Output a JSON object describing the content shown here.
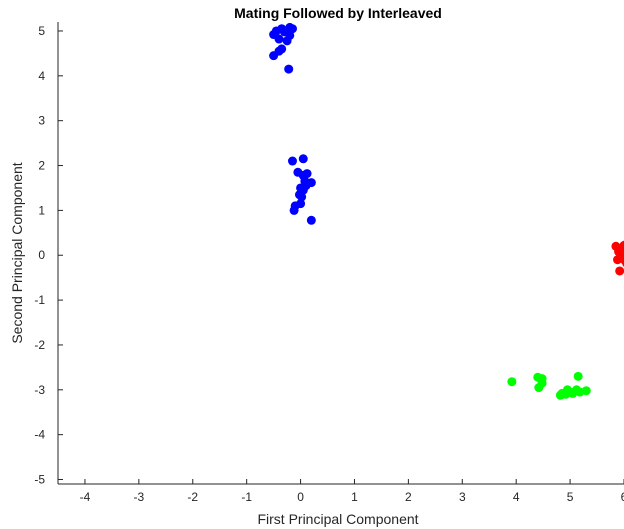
{
  "chart_data": {
    "type": "scatter",
    "title": "Mating Followed by Interleaved",
    "xlabel": "First Principal Component",
    "ylabel": "Second Principal Component",
    "xlim": [
      -4.5,
      6
    ],
    "ylim": [
      -5.1,
      5.2
    ],
    "xticks": [
      -4,
      -3,
      -2,
      -1,
      0,
      1,
      2,
      3,
      4,
      5,
      6
    ],
    "yticks": [
      -5,
      -4,
      -3,
      -2,
      -1,
      0,
      1,
      2,
      3,
      4,
      5
    ],
    "grid": false,
    "series": [
      {
        "color": "#0000ff",
        "points": [
          [
            -0.45,
            5.0
          ],
          [
            -0.35,
            5.05
          ],
          [
            -0.2,
            5.08
          ],
          [
            -0.15,
            5.05
          ],
          [
            -0.3,
            4.98
          ],
          [
            -0.5,
            4.92
          ],
          [
            -0.2,
            4.9
          ],
          [
            -0.4,
            4.82
          ],
          [
            -0.25,
            4.78
          ],
          [
            -0.35,
            4.6
          ],
          [
            -0.4,
            4.55
          ],
          [
            -0.5,
            4.45
          ],
          [
            -0.22,
            4.15
          ]
        ]
      },
      {
        "color": "#0000ff",
        "points": [
          [
            -0.15,
            2.1
          ],
          [
            0.05,
            2.15
          ],
          [
            -0.05,
            1.85
          ],
          [
            0.05,
            1.78
          ],
          [
            0.12,
            1.82
          ],
          [
            0.08,
            1.65
          ],
          [
            0.2,
            1.62
          ],
          [
            0.1,
            1.55
          ],
          [
            0.0,
            1.5
          ],
          [
            0.05,
            1.45
          ],
          [
            -0.02,
            1.35
          ],
          [
            0.02,
            1.3
          ],
          [
            0.0,
            1.15
          ],
          [
            -0.1,
            1.1
          ],
          [
            -0.12,
            1.0
          ],
          [
            0.2,
            0.78
          ]
        ]
      },
      {
        "color": "#ff0000",
        "points": [
          [
            5.85,
            0.2
          ],
          [
            5.95,
            0.15
          ],
          [
            6.0,
            0.22
          ],
          [
            6.05,
            0.25
          ],
          [
            5.9,
            0.08
          ],
          [
            6.0,
            0.05
          ],
          [
            5.95,
            -0.05
          ],
          [
            5.88,
            -0.1
          ],
          [
            6.02,
            -0.12
          ],
          [
            6.05,
            -0.18
          ],
          [
            5.92,
            -0.35
          ]
        ]
      },
      {
        "color": "#00ff00",
        "points": [
          [
            3.92,
            -2.82
          ],
          [
            4.4,
            -2.72
          ],
          [
            4.48,
            -2.75
          ],
          [
            4.48,
            -2.85
          ],
          [
            4.42,
            -2.95
          ],
          [
            5.15,
            -2.7
          ],
          [
            4.85,
            -3.08
          ],
          [
            4.82,
            -3.12
          ],
          [
            4.92,
            -3.1
          ],
          [
            5.0,
            -3.05
          ],
          [
            5.05,
            -3.08
          ],
          [
            5.12,
            -3.0
          ],
          [
            5.18,
            -3.05
          ],
          [
            5.3,
            -3.02
          ],
          [
            4.95,
            -3.0
          ]
        ]
      }
    ]
  }
}
